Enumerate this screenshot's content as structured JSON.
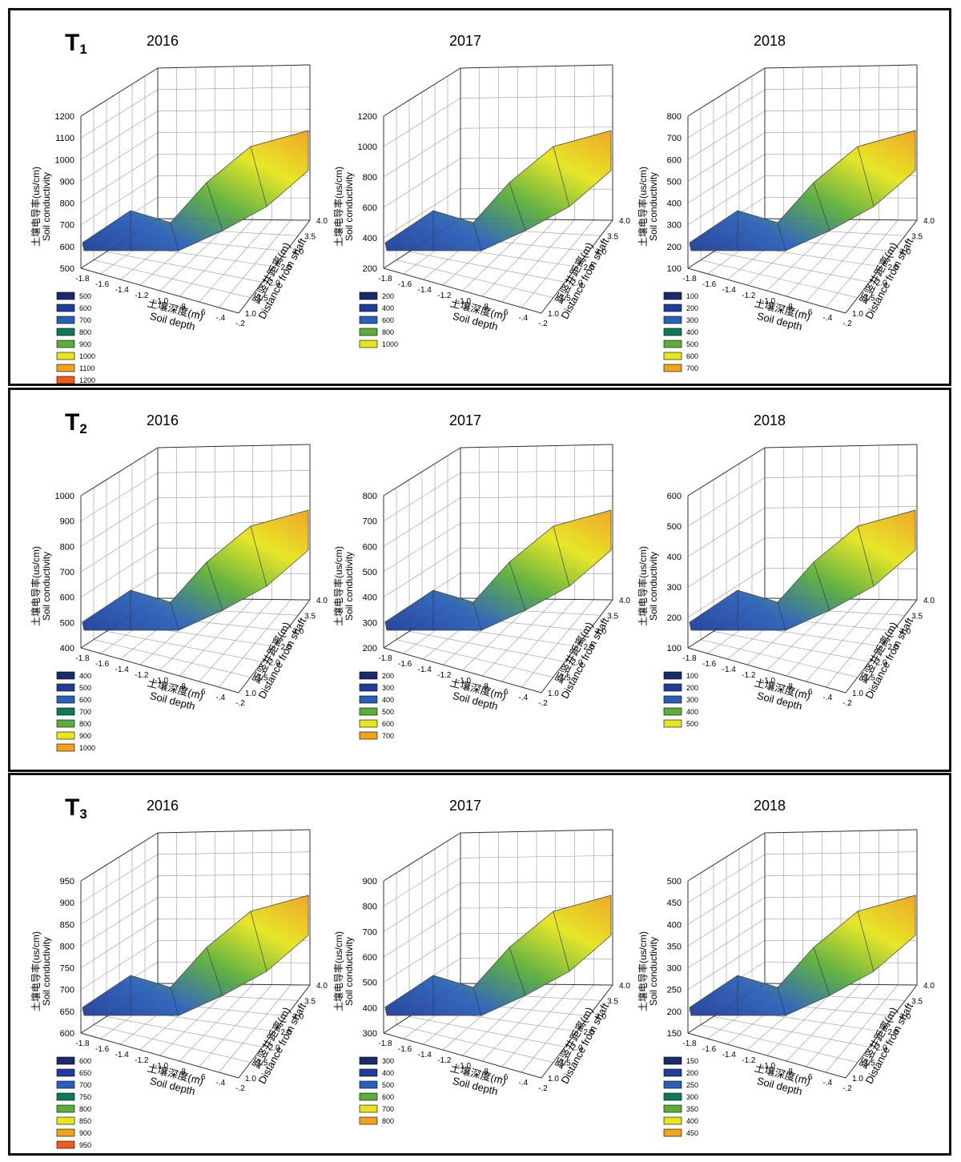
{
  "axis_labels": {
    "z_cn": "土壤电导率(us/cm)",
    "z_en": "Soil conductivity",
    "x_cn": "土壤深度(m)",
    "x_en": "Soil depth",
    "y_cn": "距竖井距离(m)",
    "y_en": "Distance from shaft"
  },
  "depth_ticks": [
    "-1.8",
    "-1.6",
    "-1.4",
    "-1.2",
    "-1.0",
    "-.8",
    "-.6",
    "-.4",
    "-.2"
  ],
  "distance_ticks": [
    "1.0",
    "1.5",
    "2.0",
    "2.5",
    "3.0",
    "3.5",
    "4.0"
  ],
  "colors": {
    "palette_7": [
      "#1b2a6b",
      "#1f3e9a",
      "#2a60b8",
      "#0f7a5a",
      "#5aae3a",
      "#e6e61e",
      "#f0a31c",
      "#ef5a1e"
    ]
  },
  "panels": [
    {
      "label": "T",
      "sub": "1",
      "charts": [
        {
          "year": "2016",
          "chart_data": {
            "type": "surface3d",
            "zlim": [
              500,
              1200
            ],
            "z_ticks": [
              "500",
              "600",
              "700",
              "800",
              "900",
              "1000",
              "1100",
              "1200"
            ],
            "legend": [
              "500",
              "600",
              "700",
              "800",
              "900",
              "1000",
              "1100",
              "1200"
            ],
            "grid": true
          }
        },
        {
          "year": "2017",
          "chart_data": {
            "type": "surface3d",
            "zlim": [
              200,
              1200
            ],
            "z_ticks": [
              "200",
              "400",
              "600",
              "800",
              "1000",
              "1200"
            ],
            "legend": [
              "200",
              "400",
              "600",
              "800",
              "1000"
            ],
            "grid": true
          }
        },
        {
          "year": "2018",
          "chart_data": {
            "type": "surface3d",
            "zlim": [
              100,
              800
            ],
            "z_ticks": [
              "100",
              "200",
              "300",
              "400",
              "500",
              "600",
              "700",
              "800"
            ],
            "legend": [
              "100",
              "200",
              "300",
              "400",
              "500",
              "600",
              "700"
            ],
            "grid": true
          }
        }
      ]
    },
    {
      "label": "T",
      "sub": "2",
      "charts": [
        {
          "year": "2016",
          "chart_data": {
            "type": "surface3d",
            "zlim": [
              400,
              1000
            ],
            "z_ticks": [
              "400",
              "500",
              "600",
              "700",
              "800",
              "900",
              "1000"
            ],
            "legend": [
              "400",
              "500",
              "600",
              "700",
              "800",
              "900",
              "1000"
            ],
            "grid": true
          }
        },
        {
          "year": "2017",
          "chart_data": {
            "type": "surface3d",
            "zlim": [
              200,
              800
            ],
            "z_ticks": [
              "200",
              "300",
              "400",
              "500",
              "600",
              "700",
              "800"
            ],
            "legend": [
              "200",
              "300",
              "400",
              "500",
              "600",
              "700"
            ],
            "grid": true
          }
        },
        {
          "year": "2018",
          "chart_data": {
            "type": "surface3d",
            "zlim": [
              100,
              600
            ],
            "z_ticks": [
              "100",
              "200",
              "300",
              "400",
              "500",
              "600"
            ],
            "legend": [
              "100",
              "200",
              "300",
              "400",
              "500"
            ],
            "grid": true
          }
        }
      ]
    },
    {
      "label": "T",
      "sub": "3",
      "charts": [
        {
          "year": "2016",
          "chart_data": {
            "type": "surface3d",
            "zlim": [
              600,
              950
            ],
            "z_ticks": [
              "600",
              "650",
              "700",
              "750",
              "800",
              "850",
              "900",
              "950"
            ],
            "legend": [
              "600",
              "650",
              "700",
              "750",
              "800",
              "850",
              "900",
              "950"
            ],
            "grid": true
          }
        },
        {
          "year": "2017",
          "chart_data": {
            "type": "surface3d",
            "zlim": [
              300,
              900
            ],
            "z_ticks": [
              "300",
              "400",
              "500",
              "600",
              "700",
              "800",
              "900"
            ],
            "legend": [
              "300",
              "400",
              "500",
              "600",
              "700",
              "800"
            ],
            "grid": true
          }
        },
        {
          "year": "2018",
          "chart_data": {
            "type": "surface3d",
            "zlim": [
              150,
              500
            ],
            "z_ticks": [
              "150",
              "200",
              "250",
              "300",
              "350",
              "400",
              "450",
              "500"
            ],
            "legend": [
              "150",
              "200",
              "250",
              "300",
              "350",
              "400",
              "450"
            ],
            "grid": true
          }
        }
      ]
    }
  ]
}
